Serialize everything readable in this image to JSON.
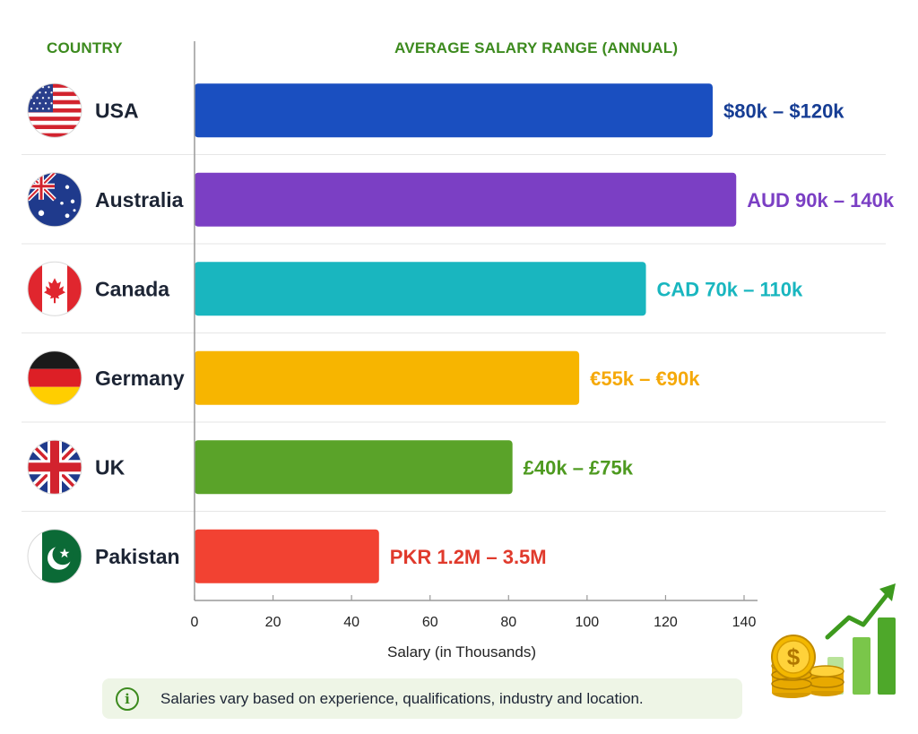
{
  "header": {
    "country": "COUNTRY",
    "salary": "AVERAGE SALARY RANGE (ANNUAL)"
  },
  "chart_data": {
    "type": "bar",
    "orientation": "horizontal",
    "categories": [
      "USA",
      "Australia",
      "Canada",
      "Germany",
      "UK",
      "Pakistan"
    ],
    "values": [
      132,
      138,
      115,
      98,
      81,
      47
    ],
    "range_labels": [
      "$80k – $120k",
      "AUD 90k – 140k",
      "CAD 70k – 110k",
      "€55k – €90k",
      "£40k – £75k",
      "PKR 1.2M – 3.5M"
    ],
    "colors": [
      "#1a4fc0",
      "#7b3fc4",
      "#19b6bf",
      "#f7b500",
      "#5aa329",
      "#f24232"
    ],
    "label_colors": [
      "#163d94",
      "#7b3fc4",
      "#19b6bf",
      "#f5a90a",
      "#4e9a20",
      "#e03a2c"
    ],
    "flags": [
      "usa-flag-icon",
      "australia-flag-icon",
      "canada-flag-icon",
      "germany-flag-icon",
      "uk-flag-icon",
      "pakistan-flag-icon"
    ],
    "xlim": [
      0,
      140
    ],
    "xticks": [
      0,
      20,
      40,
      60,
      80,
      100,
      120,
      140
    ],
    "xlabel": "Salary (in Thousands)",
    "grid": false
  },
  "note": {
    "icon": "info-icon",
    "text": "Salaries vary based on experience, qualifications, industry and location."
  },
  "decoration": {
    "icon": "coins-growth-chart-icon"
  }
}
